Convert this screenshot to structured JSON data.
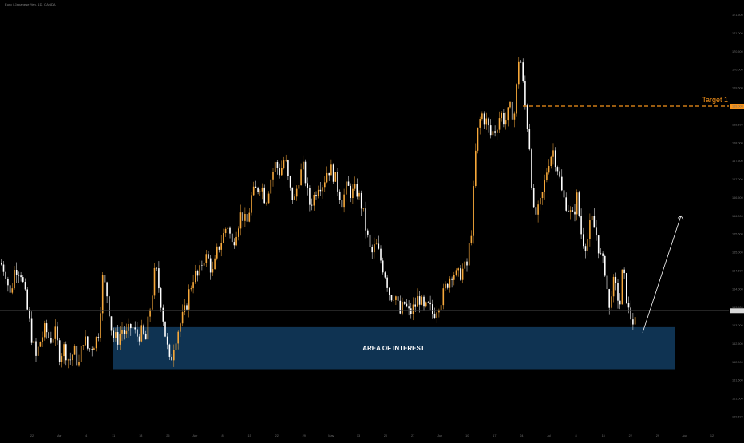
{
  "header": {
    "symbol_title": "Euro / Japanese Yen, 1D, OANDA"
  },
  "colors": {
    "background": "#000000",
    "up_candle": "#f7a83a",
    "down_candle": "#ffffff",
    "target_line": "#f7931a",
    "zone_fill": "#0f3352",
    "arrow": "#ffffff",
    "axis_text": "#6f6f6f",
    "current_price_line": "#3a3a3a"
  },
  "chart_data": {
    "type": "candlestick",
    "title": "",
    "xlabel": "",
    "ylabel": "",
    "ylim": [
      160.5,
      171.6
    ],
    "grid": false,
    "legend": "none",
    "x_tick_labels": [
      "22",
      "Mar",
      "4",
      "11",
      "18",
      "25",
      "Apr",
      "8",
      "15",
      "22",
      "29",
      "May",
      "13",
      "20",
      "27",
      "Jun",
      "10",
      "17",
      "24",
      "Jul",
      "8",
      "15",
      "22",
      "29",
      "Aug",
      "12"
    ],
    "y_tick_labels": [
      "171.500",
      "171.000",
      "170.500",
      "170.000",
      "169.500",
      "169.000",
      "168.500",
      "168.000",
      "167.500",
      "167.000",
      "166.500",
      "166.000",
      "165.500",
      "165.000",
      "164.500",
      "164.000",
      "163.500",
      "163.000",
      "162.500",
      "162.000",
      "161.500",
      "161.000",
      "160.500"
    ],
    "price_path": [
      [
        0,
        164.7
      ],
      [
        6,
        164.5
      ],
      [
        12,
        163.8
      ],
      [
        18,
        164.6
      ],
      [
        25,
        164.5
      ],
      [
        32,
        163.6
      ],
      [
        38,
        162.8
      ],
      [
        44,
        162.1
      ],
      [
        50,
        162.6
      ],
      [
        56,
        162.9
      ],
      [
        62,
        162.6
      ],
      [
        68,
        162.8
      ],
      [
        74,
        162.2
      ],
      [
        80,
        162.4
      ],
      [
        86,
        162.0
      ],
      [
        92,
        162.3
      ],
      [
        98,
        161.9
      ],
      [
        104,
        162.7
      ],
      [
        110,
        162.3
      ],
      [
        116,
        162.5
      ],
      [
        122,
        162.7
      ],
      [
        128,
        164.3
      ],
      [
        134,
        163.8
      ],
      [
        140,
        162.7
      ],
      [
        146,
        162.6
      ],
      [
        152,
        162.9
      ],
      [
        158,
        162.7
      ],
      [
        164,
        163.0
      ],
      [
        170,
        162.7
      ],
      [
        176,
        162.8
      ],
      [
        182,
        162.6
      ],
      [
        188,
        163.6
      ],
      [
        194,
        164.6
      ],
      [
        200,
        163.8
      ],
      [
        206,
        162.8
      ],
      [
        212,
        161.9
      ],
      [
        218,
        162.6
      ],
      [
        224,
        163.0
      ],
      [
        230,
        163.3
      ],
      [
        236,
        163.9
      ],
      [
        242,
        164.4
      ],
      [
        248,
        164.3
      ],
      [
        254,
        164.9
      ],
      [
        260,
        164.8
      ],
      [
        266,
        164.4
      ],
      [
        272,
        165.1
      ],
      [
        278,
        165.4
      ],
      [
        284,
        165.8
      ],
      [
        290,
        165.2
      ],
      [
        296,
        165.7
      ],
      [
        302,
        166.1
      ],
      [
        308,
        165.7
      ],
      [
        314,
        166.5
      ],
      [
        320,
        166.7
      ],
      [
        326,
        166.9
      ],
      [
        332,
        166.4
      ],
      [
        338,
        167.0
      ],
      [
        344,
        167.4
      ],
      [
        350,
        167.2
      ],
      [
        356,
        167.6
      ],
      [
        362,
        166.7
      ],
      [
        368,
        166.4
      ],
      [
        374,
        167.1
      ],
      [
        380,
        167.3
      ],
      [
        386,
        166.3
      ],
      [
        392,
        166.5
      ],
      [
        398,
        166.9
      ],
      [
        404,
        166.9
      ],
      [
        410,
        167.3
      ],
      [
        416,
        167.2
      ],
      [
        422,
        166.8
      ],
      [
        428,
        166.4
      ],
      [
        434,
        166.8
      ],
      [
        440,
        166.6
      ],
      [
        446,
        166.7
      ],
      [
        452,
        166.3
      ],
      [
        458,
        165.6
      ],
      [
        464,
        164.9
      ],
      [
        470,
        165.2
      ],
      [
        476,
        164.8
      ],
      [
        482,
        164.4
      ],
      [
        488,
        163.8
      ],
      [
        494,
        163.9
      ],
      [
        500,
        163.3
      ],
      [
        506,
        163.6
      ],
      [
        512,
        163.3
      ],
      [
        518,
        163.5
      ],
      [
        524,
        163.8
      ],
      [
        530,
        163.4
      ],
      [
        536,
        163.5
      ],
      [
        542,
        163.3
      ],
      [
        548,
        163.6
      ],
      [
        554,
        163.8
      ],
      [
        560,
        164.2
      ],
      [
        566,
        164.5
      ],
      [
        572,
        164.3
      ],
      [
        578,
        164.5
      ],
      [
        584,
        164.6
      ],
      [
        590,
        165.7
      ],
      [
        596,
        168.1
      ],
      [
        602,
        168.8
      ],
      [
        608,
        168.6
      ],
      [
        614,
        168.2
      ],
      [
        620,
        168.4
      ],
      [
        626,
        168.8
      ],
      [
        632,
        168.6
      ],
      [
        638,
        168.9
      ],
      [
        644,
        168.8
      ],
      [
        650,
        170.6
      ],
      [
        656,
        169.2
      ],
      [
        662,
        168.1
      ],
      [
        668,
        166.0
      ],
      [
        674,
        166.1
      ],
      [
        680,
        166.7
      ],
      [
        686,
        167.5
      ],
      [
        692,
        167.8
      ],
      [
        698,
        167.3
      ],
      [
        704,
        166.5
      ],
      [
        710,
        166.3
      ],
      [
        716,
        165.9
      ],
      [
        722,
        166.5
      ],
      [
        728,
        165.4
      ],
      [
        734,
        165.2
      ],
      [
        740,
        165.9
      ],
      [
        746,
        165.5
      ],
      [
        752,
        164.8
      ],
      [
        758,
        164.5
      ],
      [
        762,
        163.3
      ],
      [
        766,
        164.2
      ],
      [
        770,
        164.0
      ],
      [
        776,
        163.6
      ],
      [
        778,
        164.4
      ],
      [
        782,
        164.2
      ],
      [
        786,
        163.4
      ],
      [
        790,
        163.2
      ],
      [
        796,
        163.0
      ]
    ],
    "target": {
      "label": "Target 1",
      "price": 169.0,
      "from_x": 655
    },
    "area_of_interest": {
      "label": "AREA OF INTEREST",
      "y_top": 162.95,
      "y_bottom": 161.8
    },
    "projection_arrow": {
      "from_price": 162.8,
      "to_price": 166.0
    },
    "current_price_level": 163.4
  }
}
